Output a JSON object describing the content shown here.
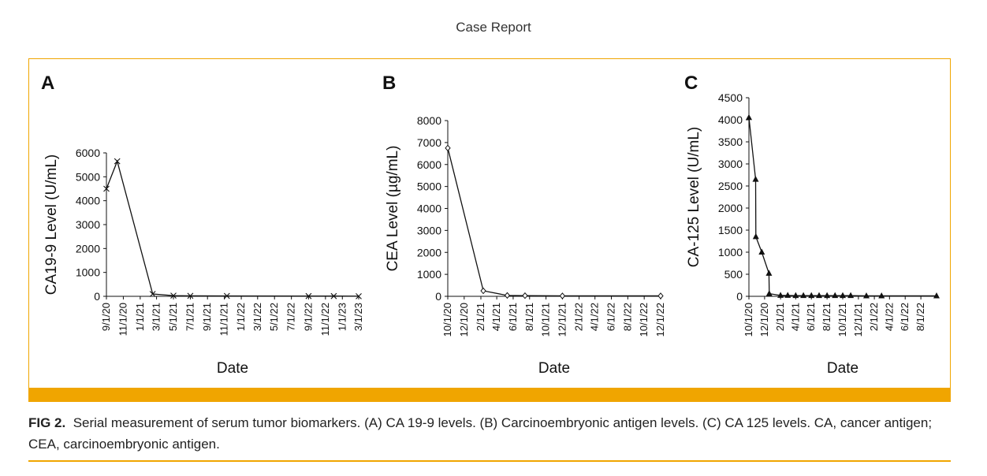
{
  "header": {
    "title": "Case Report"
  },
  "caption": {
    "label": "FIG 2.",
    "text": "Serial measurement of serum tumor biomarkers. (A) CA 19-9 levels. (B) Carcinoembryonic antigen levels. (C) CA 125 levels. CA, cancer antigen; CEA, carcinoembryonic antigen."
  },
  "colors": {
    "accent": "#f0a500",
    "line": "#111111"
  },
  "chart_data": [
    {
      "panel": "A",
      "type": "line",
      "marker": "x",
      "xlabel": "Date",
      "ylabel": "CA19-9 Level (U/mL)",
      "ylim": [
        0,
        6000
      ],
      "yticks": [
        0,
        1000,
        2000,
        3000,
        4000,
        5000,
        6000
      ],
      "xlim": [
        "2020-09-01",
        "2023-03-01"
      ],
      "xticks": [
        "9/1/20",
        "11/1/20",
        "1/1/21",
        "3/1/21",
        "5/1/21",
        "7/1/21",
        "9/1/21",
        "11/1/21",
        "1/1/22",
        "3/1/22",
        "5/1/22",
        "7/1/22",
        "9/1/22",
        "11/1/22",
        "1/1/23",
        "3/1/23"
      ],
      "x": [
        "2020-09-01",
        "2020-10-10",
        "2021-02-15",
        "2021-05-01",
        "2021-07-01",
        "2021-11-10",
        "2022-09-01",
        "2022-12-01",
        "2023-03-01"
      ],
      "y": [
        4500,
        5650,
        100,
        30,
        20,
        15,
        10,
        10,
        5
      ]
    },
    {
      "panel": "B",
      "type": "line",
      "marker": "diamond",
      "xlabel": "Date",
      "ylabel": "CEA Level (µg/mL)",
      "ylim": [
        0,
        8000
      ],
      "yticks": [
        0,
        1000,
        2000,
        3000,
        4000,
        5000,
        6000,
        7000,
        8000
      ],
      "xlim": [
        "2020-10-01",
        "2022-12-01"
      ],
      "xticks": [
        "10/1/20",
        "12/1/20",
        "2/1/21",
        "4/1/21",
        "6/1/21",
        "8/1/21",
        "10/1/21",
        "12/1/21",
        "2/1/22",
        "4/1/22",
        "6/1/22",
        "8/1/22",
        "10/1/22",
        "12/1/22"
      ],
      "x": [
        "2020-10-01",
        "2021-02-10",
        "2021-05-10",
        "2021-07-15",
        "2021-12-01",
        "2022-12-01"
      ],
      "y": [
        6750,
        250,
        40,
        30,
        20,
        20
      ]
    },
    {
      "panel": "C",
      "type": "line",
      "marker": "triangle",
      "xlabel": "Date",
      "ylabel": "CA-125 Level (U/mL)",
      "ylim": [
        0,
        4500
      ],
      "yticks": [
        0,
        500,
        1000,
        1500,
        2000,
        2500,
        3000,
        3500,
        4000,
        4500
      ],
      "xlim": [
        "2020-10-01",
        "2022-10-01"
      ],
      "xticks": [
        "10/1/20",
        "12/1/20",
        "2/1/21",
        "4/1/21",
        "6/1/21",
        "8/1/21",
        "10/1/21",
        "12/1/21",
        "2/1/22",
        "4/1/22",
        "6/1/22",
        "8/1/22"
      ],
      "x": [
        "2020-10-01",
        "2020-10-27",
        "2020-10-28",
        "2020-11-20",
        "2020-12-18",
        "2020-12-19",
        "2021-02-01",
        "2021-03-01",
        "2021-04-01",
        "2021-05-01",
        "2021-06-01",
        "2021-07-01",
        "2021-08-01",
        "2021-09-01",
        "2021-10-01",
        "2021-11-01",
        "2022-01-01",
        "2022-03-01",
        "2022-10-01"
      ],
      "y": [
        4050,
        2650,
        1350,
        1000,
        520,
        60,
        20,
        20,
        15,
        15,
        15,
        15,
        15,
        15,
        15,
        15,
        10,
        10,
        10
      ]
    }
  ]
}
